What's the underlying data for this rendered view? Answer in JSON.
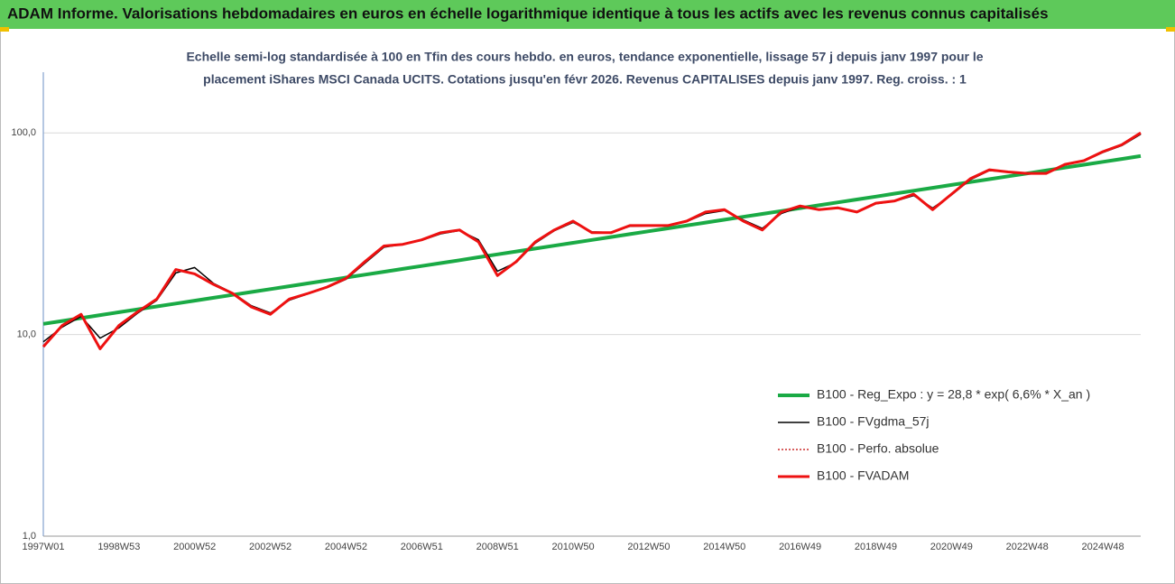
{
  "chart_data": {
    "type": "line",
    "title": "ADAM Informe. Valorisations hebdomadaires en euros en échelle logarithmique identique à tous les actifs avec les revenus connus capitalisés",
    "subtitle": [
      "Echelle semi-log standardisée à 100 en Tfin des cours hebdo. en euros, tendance exponentielle, lissage 57 j depuis janv 1997 pour le",
      "placement iShares MSCI Canada UCITS. Cotations jusqu'en févr 2026. Revenus CAPITALISES depuis janv 1997. Reg. croiss. : 1"
    ],
    "categories": [
      "1997W01",
      null,
      null,
      null,
      "1998W53",
      null,
      null,
      null,
      "2000W52",
      null,
      null,
      null,
      "2002W52",
      null,
      null,
      null,
      "2004W52",
      null,
      null,
      null,
      "2006W51",
      null,
      null,
      null,
      "2008W51",
      null,
      null,
      null,
      "2010W50",
      null,
      null,
      null,
      "2012W50",
      null,
      null,
      null,
      "2014W50",
      null,
      null,
      null,
      "2016W49",
      null,
      null,
      null,
      "2018W49",
      null,
      null,
      null,
      "2020W49",
      null,
      null,
      null,
      "2022W48",
      null,
      null,
      null,
      "2024W48",
      null,
      null
    ],
    "log_scale": true,
    "ylim": [
      1,
      200
    ],
    "yticks": [
      {
        "value": 1,
        "label": "1,0"
      },
      {
        "value": 10,
        "label": "10,0"
      },
      {
        "value": 100,
        "label": "100,0"
      }
    ],
    "grid": true,
    "legend": "lower right",
    "series": [
      {
        "name": "B100 - Reg_Expo : y = 28,8 * exp( 6,6% *  X_an )",
        "color": "#1aaa45",
        "line_width": 4,
        "style": "solid",
        "values": [
          11.3,
          11.68,
          12.07,
          12.48,
          12.9,
          13.33,
          13.78,
          14.24,
          14.72,
          15.21,
          15.72,
          16.25,
          16.8,
          17.36,
          17.94,
          18.55,
          19.17,
          19.81,
          20.48,
          21.17,
          21.88,
          22.61,
          23.37,
          24.16,
          24.97,
          25.81,
          26.68,
          27.57,
          28.5,
          29.45,
          30.44,
          31.47,
          32.52,
          33.61,
          34.74,
          35.91,
          37.12,
          38.36,
          39.65,
          40.98,
          42.36,
          43.78,
          45.25,
          46.77,
          48.34,
          49.97,
          51.65,
          53.38,
          55.17,
          57.03,
          58.94,
          60.92,
          62.97,
          65.08,
          67.27,
          69.53,
          71.87,
          74.28,
          76.78
        ]
      },
      {
        "name": "B100 - FVgdma_57j",
        "color": "#000000",
        "line_width": 1.5,
        "style": "solid",
        "values": [
          9.2,
          10.9,
          12.3,
          9.6,
          10.8,
          12.8,
          14.8,
          20.2,
          21.5,
          17.9,
          16.1,
          13.9,
          12.8,
          14.8,
          15.9,
          17.1,
          18.8,
          22.6,
          27.1,
          28,
          29.3,
          31.6,
          32.8,
          29.5,
          20.6,
          22.8,
          28.4,
          32.7,
          36,
          32.3,
          32.1,
          34.4,
          34.6,
          34.7,
          36.3,
          39.8,
          41.2,
          37,
          33.6,
          39.8,
          42.9,
          41.7,
          42.3,
          40.7,
          44.5,
          45.8,
          48.9,
          42.4,
          49.2,
          58.6,
          65,
          64.1,
          63.1,
          63,
          69.3,
          72.5,
          80,
          86.5,
          98.5
        ]
      },
      {
        "name": "B100 - Perfo. absolue",
        "color": "#c00000",
        "line_width": 1.2,
        "style": "dotted",
        "values": [
          8.7,
          11.1,
          12.6,
          8.5,
          11.1,
          13,
          15,
          21,
          20,
          17.7,
          16,
          13.7,
          12.6,
          15,
          16,
          17.2,
          19,
          23,
          27.5,
          28,
          29.5,
          32,
          33,
          28.8,
          19.6,
          23,
          28.8,
          33,
          36.5,
          32,
          32,
          34.7,
          34.7,
          34.7,
          36.5,
          40.5,
          41.6,
          36.5,
          33,
          40.5,
          43.4,
          41.6,
          42.5,
          40.5,
          44.8,
          46,
          49.7,
          41.6,
          49.7,
          59.3,
          65.6,
          64,
          63,
          63,
          69.8,
          72.8,
          80.7,
          87.3,
          100
        ]
      },
      {
        "name": "B100 - FVADAM",
        "color": "#ee1111",
        "line_width": 3,
        "style": "solid",
        "values": [
          8.7,
          11.1,
          12.6,
          8.5,
          11.1,
          13,
          15,
          21,
          20,
          17.7,
          16,
          13.7,
          12.6,
          15,
          16,
          17.2,
          19,
          23,
          27.5,
          28,
          29.5,
          32,
          33,
          28.8,
          19.6,
          23,
          28.8,
          33,
          36.5,
          32,
          32,
          34.7,
          34.7,
          34.7,
          36.5,
          40.5,
          41.6,
          36.5,
          33,
          40.5,
          43.4,
          41.6,
          42.5,
          40.5,
          44.8,
          46,
          49.7,
          41.6,
          49.7,
          59.3,
          65.6,
          64,
          63,
          63,
          69.8,
          72.8,
          80.7,
          87.3,
          100
        ]
      }
    ]
  }
}
